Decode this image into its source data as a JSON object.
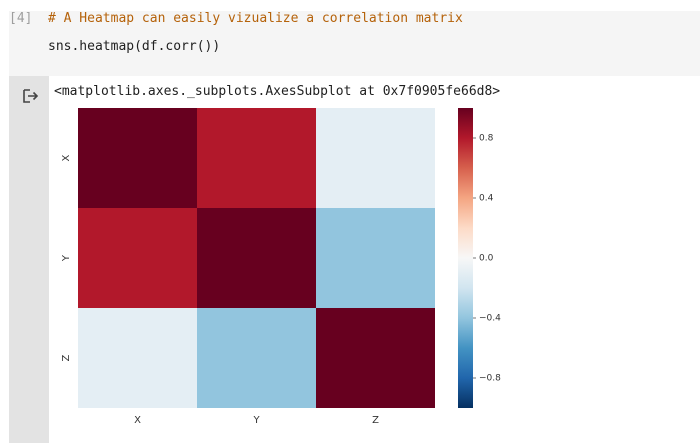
{
  "cell": {
    "execution_count": "[4]",
    "code_comment": "# A Heatmap can easily vizualize a correlation matrix",
    "code_statement": "sns.heatmap(df.corr())"
  },
  "output": {
    "icon": "output-redirect-icon",
    "text": "<matplotlib.axes._subplots.AxesSubplot at 0x7f0905fe66d8>"
  },
  "chart_data": {
    "type": "heatmap",
    "x_categories": [
      "X",
      "Y",
      "Z"
    ],
    "y_categories": [
      "X",
      "Y",
      "Z"
    ],
    "values": [
      [
        1.0,
        0.8,
        -0.1
      ],
      [
        0.8,
        1.0,
        -0.4
      ],
      [
        -0.1,
        -0.4,
        1.0
      ]
    ],
    "colormap": "RdBu_r",
    "color_range": [
      -1,
      1
    ],
    "colorbar_ticks": [
      "0.8",
      "0.4",
      "0.0",
      "−0.4",
      "−0.8"
    ],
    "colorbar_tick_values": [
      0.8,
      0.4,
      0.0,
      -0.4,
      -0.8
    ],
    "title": "",
    "xlabel": "",
    "ylabel": ""
  }
}
